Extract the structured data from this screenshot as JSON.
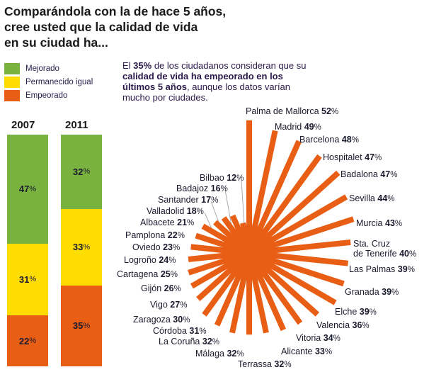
{
  "title": [
    "Comparándola con la de hace 5 años,",
    "cree usted que la calidad de vida",
    "en su ciudad ha..."
  ],
  "legend": [
    {
      "label": "Mejorado",
      "color": "#7ab23f"
    },
    {
      "label": "Permanecido igual",
      "color": "#ffdd00"
    },
    {
      "label": "Empeorado",
      "color": "#e85e15"
    }
  ],
  "description": {
    "p1": "El ",
    "b1": "35%",
    "p2": " de los ciudadanos consideran que su ",
    "b2": "calidad de vida ha empeorado en los últimos 5 años",
    "p3": ", aunque los datos varían mucho por ciudades."
  },
  "chart_data": [
    {
      "type": "bar",
      "stacked": true,
      "categories": [
        "2007",
        "2011"
      ],
      "series": [
        {
          "name": "Mejorado",
          "values": [
            47,
            32
          ],
          "color": "#7ab23f"
        },
        {
          "name": "Permanecido igual",
          "values": [
            31,
            33
          ],
          "color": "#ffdd00"
        },
        {
          "name": "Empeorado",
          "values": [
            22,
            35
          ],
          "color": "#e85e15"
        }
      ],
      "unit": "%"
    },
    {
      "type": "radial-bar",
      "unit": "%",
      "color": "#e85e15",
      "categories": [
        "Palma de Mallorca",
        "Madrid",
        "Barcelona",
        "Hospitalet",
        "Badalona",
        "Sevilla",
        "Murcia",
        "Sta. Cruz de Tenerife",
        "Las Palmas",
        "Granada",
        "Elche",
        "Valencia",
        "Vitoria",
        "Alicante",
        "Terrassa",
        "Málaga",
        "La Coruña",
        "Córdoba",
        "Zaragoza",
        "Vigo",
        "Gijón",
        "Cartagena",
        "Logroño",
        "Oviedo",
        "Pamplona",
        "Albacete",
        "Valladolid",
        "Santander",
        "Badajoz",
        "Bilbao"
      ],
      "values": [
        52,
        49,
        48,
        47,
        47,
        44,
        43,
        40,
        39,
        39,
        39,
        36,
        34,
        33,
        32,
        32,
        32,
        31,
        30,
        27,
        26,
        25,
        24,
        23,
        22,
        21,
        18,
        17,
        16,
        12
      ]
    }
  ]
}
